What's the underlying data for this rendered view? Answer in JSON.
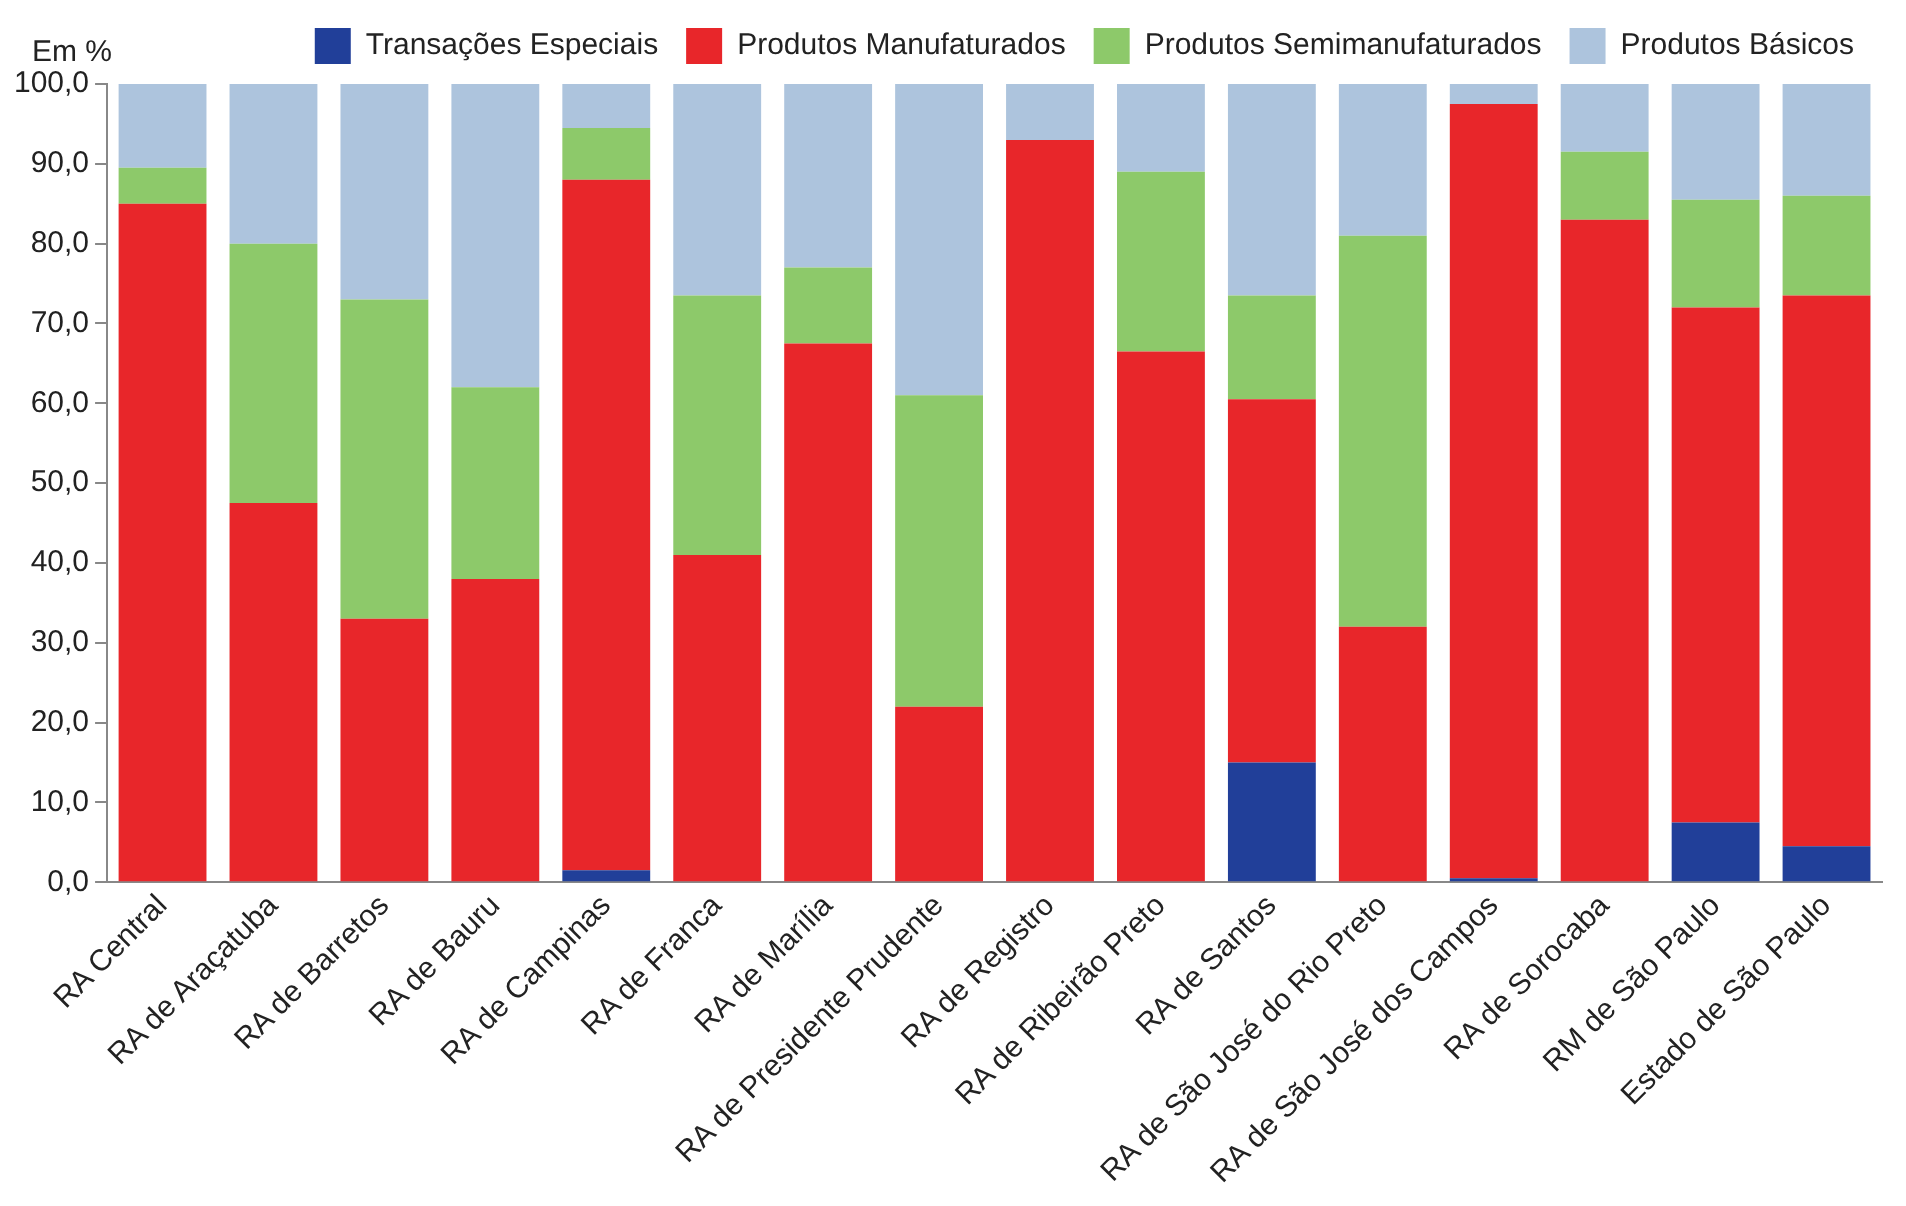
{
  "chart_data": {
    "type": "bar",
    "stacked": true,
    "ylabel": "Em %",
    "legend": "top right",
    "grid": false,
    "categories": [
      "RA Central",
      "RA de Araçatuba",
      "RA de Barretos",
      "RA de Bauru",
      "RA de Campinas",
      "RA de Franca",
      "RA de Marília",
      "RA de Presidente Prudente",
      "RA de Registro",
      "RA de Ribeirão Preto",
      "RA de Santos",
      "RA de São José do Rio Preto",
      "RA de São José dos Campos",
      "RA de Sorocaba",
      "RM de São Paulo",
      "Estado de São Paulo"
    ],
    "ylim": [
      0,
      100
    ],
    "yticks": [
      {
        "value": 0,
        "label": "0,0"
      },
      {
        "value": 10,
        "label": "10,0"
      },
      {
        "value": 20,
        "label": "20,0"
      },
      {
        "value": 30,
        "label": "30,0"
      },
      {
        "value": 40,
        "label": "40,0"
      },
      {
        "value": 50,
        "label": "50,0"
      },
      {
        "value": 60,
        "label": "60,0"
      },
      {
        "value": 70,
        "label": "70,0"
      },
      {
        "value": 80,
        "label": "80,0"
      },
      {
        "value": 90,
        "label": "90,0"
      },
      {
        "value": 100,
        "label": "100,0"
      }
    ],
    "series": [
      {
        "name": "Transações Especiais",
        "color": "#213f99",
        "values": [
          0,
          0,
          0,
          0,
          1.5,
          0,
          0,
          0,
          0,
          0,
          15,
          0,
          0.5,
          0,
          7.5,
          4.5
        ]
      },
      {
        "name": "Produtos Manufaturados",
        "color": "#e8262a",
        "values": [
          85,
          47.5,
          33,
          38,
          86.5,
          41,
          67.5,
          22,
          93,
          66.5,
          45.5,
          32,
          97,
          83,
          64.5,
          69
        ]
      },
      {
        "name": "Produtos Semimanufaturados",
        "color": "#8dc96a",
        "values": [
          4.5,
          32.5,
          40,
          24,
          6.5,
          32.5,
          9.5,
          39,
          0,
          22.5,
          13,
          49,
          0,
          8.5,
          13.5,
          12.5
        ]
      },
      {
        "name": "Produtos Básicos",
        "color": "#adc4dd",
        "values": [
          10.5,
          20,
          27,
          38,
          5.5,
          26.5,
          23,
          39,
          7,
          11,
          26.5,
          19,
          2.5,
          8.5,
          14.5,
          14
        ]
      }
    ]
  }
}
